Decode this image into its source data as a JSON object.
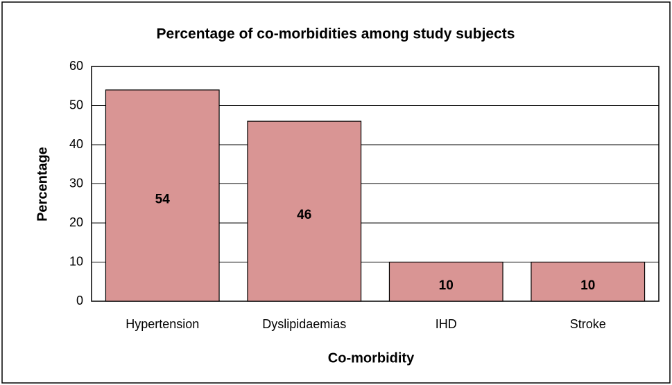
{
  "chart_data": {
    "type": "bar",
    "title": "Percentage of co-morbidities among study subjects",
    "x_label": "Co-morbidity",
    "y_label": "Percentage",
    "categories": [
      "Hypertension",
      "Dyslipidaemias",
      "IHD",
      "Stroke"
    ],
    "values": [
      54,
      46,
      10,
      10
    ],
    "color": "#d99594",
    "ylim": [
      0,
      60
    ],
    "yticks": [
      0,
      10,
      20,
      30,
      40,
      50,
      60
    ],
    "grid": true
  }
}
